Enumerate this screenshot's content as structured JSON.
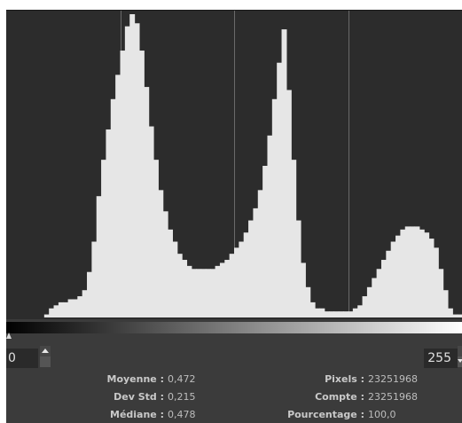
{
  "histogram": {
    "value_range": [
      0,
      255
    ],
    "colors": {
      "background": "#2c2c2c",
      "fill": "#e6e6e6",
      "grid": "#6a6a6a",
      "panel": "#3b3b3b"
    },
    "grid_divisions": 4,
    "levels": [
      0.0,
      0.0,
      0.0,
      0.0,
      0.0,
      0.0,
      0.0,
      0.0,
      0.01,
      0.03,
      0.04,
      0.05,
      0.05,
      0.06,
      0.06,
      0.07,
      0.09,
      0.15,
      0.25,
      0.4,
      0.52,
      0.62,
      0.72,
      0.8,
      0.88,
      0.96,
      1.0,
      0.97,
      0.88,
      0.76,
      0.63,
      0.52,
      0.42,
      0.35,
      0.29,
      0.25,
      0.21,
      0.19,
      0.17,
      0.16,
      0.16,
      0.16,
      0.16,
      0.16,
      0.17,
      0.18,
      0.19,
      0.21,
      0.23,
      0.25,
      0.28,
      0.32,
      0.36,
      0.42,
      0.5,
      0.6,
      0.72,
      0.84,
      0.95,
      0.75,
      0.52,
      0.32,
      0.18,
      0.1,
      0.05,
      0.03,
      0.03,
      0.02,
      0.02,
      0.02,
      0.02,
      0.02,
      0.02,
      0.03,
      0.04,
      0.07,
      0.1,
      0.13,
      0.16,
      0.19,
      0.22,
      0.25,
      0.27,
      0.29,
      0.3,
      0.3,
      0.3,
      0.29,
      0.28,
      0.26,
      0.23,
      0.16,
      0.09,
      0.03,
      0.01,
      0.01
    ]
  },
  "controls": {
    "min_value": "0",
    "max_value": "255"
  },
  "stats": {
    "mean_label": "Moyenne :",
    "mean_value": "0,472",
    "std_label": "Dev Std :",
    "std_value": "0,215",
    "median_label": "Médiane :",
    "median_value": "0,478",
    "pixels_label": "Pixels :",
    "pixels_value": "23251968",
    "count_label": "Compte :",
    "count_value": "23251968",
    "percent_label": "Pourcentage :",
    "percent_value": "100,0"
  }
}
